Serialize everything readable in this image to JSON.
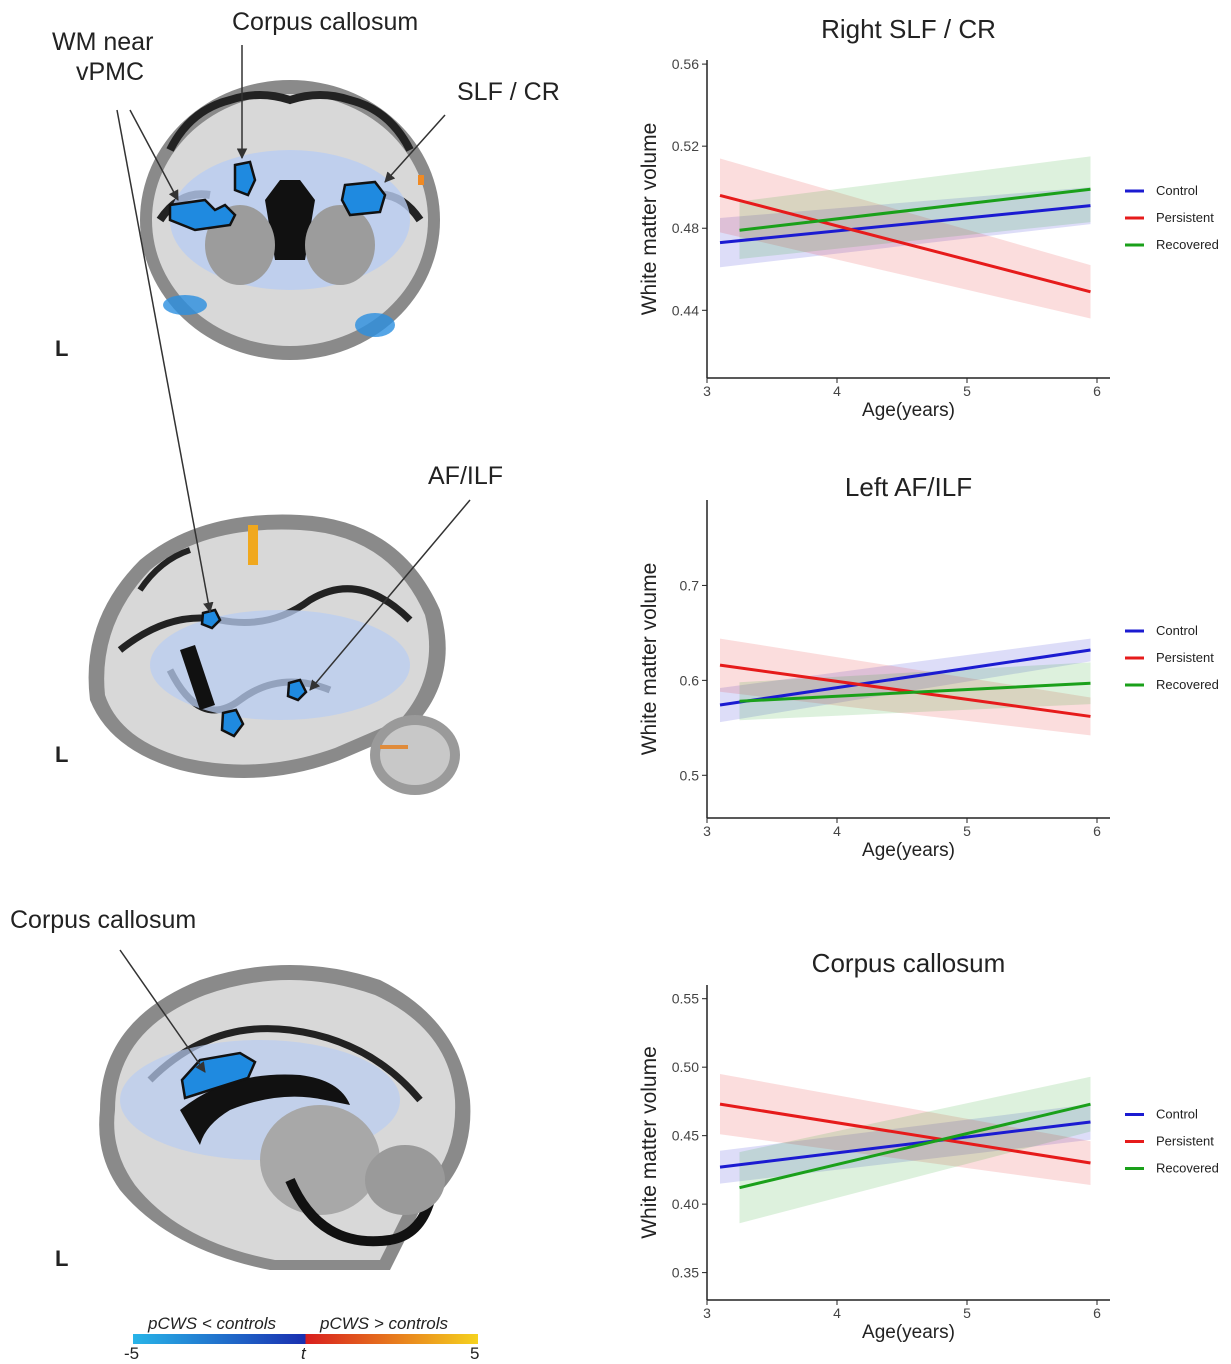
{
  "annotations": {
    "wm_vpmc_line1": "WM near",
    "wm_vpmc_line2": "vPMC",
    "corpus_callosum_top": "Corpus callosum",
    "slf_cr": "SLF / CR",
    "af_ilf": "AF/ILF",
    "corpus_callosum_bottom": "Corpus callosum",
    "left_marker": "L"
  },
  "colorbar": {
    "left_label": "pCWS < controls",
    "right_label": "pCWS > controls",
    "min": "-5",
    "mid": "t",
    "max": "5",
    "colors": [
      "#28b4e8",
      "#1a2fb0",
      "#d81e1e",
      "#f5d21e"
    ]
  },
  "series_colors": {
    "Control": "#1b1bd1",
    "Persistent": "#e61b1b",
    "Recovered": "#1aa01a"
  },
  "chart_data": [
    {
      "type": "line",
      "title": "Right SLF / CR",
      "xlabel": "Age(years)",
      "ylabel": "White matter volume",
      "xlim": [
        3,
        6.1
      ],
      "ylim": [
        0.407,
        0.562
      ],
      "xticks": [
        "3",
        "4",
        "5",
        "6"
      ],
      "yticks": [
        "0.44",
        "0.48",
        "0.52",
        "0.56"
      ],
      "legend_position": "right",
      "series": [
        {
          "name": "Control",
          "x": [
            3.1,
            5.95
          ],
          "y": [
            0.473,
            0.491
          ],
          "band": [
            0.012,
            0.009
          ]
        },
        {
          "name": "Persistent",
          "x": [
            3.1,
            5.95
          ],
          "y": [
            0.496,
            0.449
          ],
          "band": [
            0.018,
            0.013
          ]
        },
        {
          "name": "Recovered",
          "x": [
            3.25,
            5.95
          ],
          "y": [
            0.479,
            0.499
          ],
          "band": [
            0.014,
            0.016
          ]
        }
      ]
    },
    {
      "type": "line",
      "title": "Left AF/ILF",
      "xlabel": "Age(years)",
      "ylabel": "White matter volume",
      "xlim": [
        3,
        6.1
      ],
      "ylim": [
        0.455,
        0.79
      ],
      "xticks": [
        "3",
        "4",
        "5",
        "6"
      ],
      "yticks": [
        "0.5",
        "0.6",
        "0.7"
      ],
      "legend_position": "right",
      "series": [
        {
          "name": "Control",
          "x": [
            3.1,
            5.95
          ],
          "y": [
            0.574,
            0.632
          ],
          "band": [
            0.018,
            0.012
          ]
        },
        {
          "name": "Persistent",
          "x": [
            3.1,
            5.95
          ],
          "y": [
            0.616,
            0.562
          ],
          "band": [
            0.028,
            0.02
          ]
        },
        {
          "name": "Recovered",
          "x": [
            3.25,
            5.95
          ],
          "y": [
            0.578,
            0.597
          ],
          "band": [
            0.02,
            0.022
          ]
        }
      ]
    },
    {
      "type": "line",
      "title": "Corpus callosum",
      "xlabel": "Age(years)",
      "ylabel": "White matter volume",
      "xlim": [
        3,
        6.1
      ],
      "ylim": [
        0.33,
        0.56
      ],
      "xticks": [
        "3",
        "4",
        "5",
        "6"
      ],
      "yticks": [
        "0.35",
        "0.40",
        "0.45",
        "0.50",
        "0.55"
      ],
      "legend_position": "right",
      "series": [
        {
          "name": "Control",
          "x": [
            3.1,
            5.95
          ],
          "y": [
            0.427,
            0.46
          ],
          "band": [
            0.012,
            0.013
          ]
        },
        {
          "name": "Persistent",
          "x": [
            3.1,
            5.95
          ],
          "y": [
            0.473,
            0.43
          ],
          "band": [
            0.022,
            0.016
          ]
        },
        {
          "name": "Recovered",
          "x": [
            3.25,
            5.95
          ],
          "y": [
            0.412,
            0.473
          ],
          "band": [
            0.026,
            0.02
          ]
        }
      ]
    }
  ]
}
